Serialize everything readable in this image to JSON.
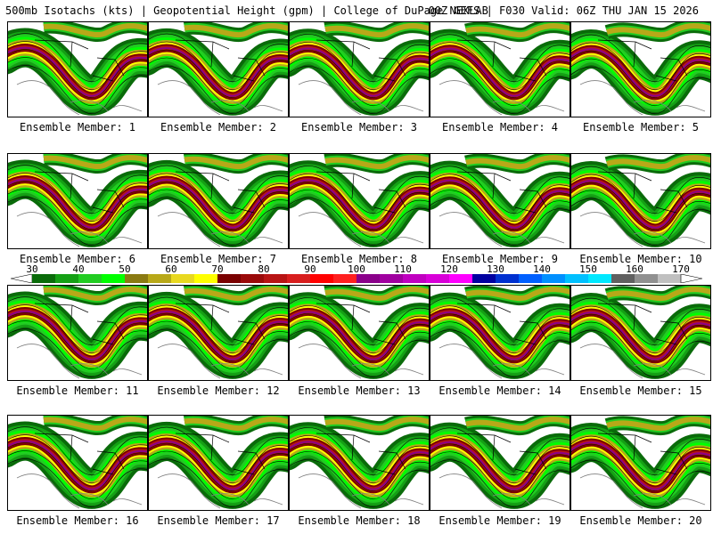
{
  "header": {
    "left_title": "500mb Isotachs (kts) | Geopotential Height (gpm) | College of DuPage NEXLAB",
    "right_title": "00Z GEFS | F030 Valid: 06Z THU JAN 15 2026"
  },
  "panels": [
    {
      "label": "Ensemble Member: 1"
    },
    {
      "label": "Ensemble Member: 2"
    },
    {
      "label": "Ensemble Member: 3"
    },
    {
      "label": "Ensemble Member: 4"
    },
    {
      "label": "Ensemble Member: 5"
    },
    {
      "label": "Ensemble Member: 6"
    },
    {
      "label": "Ensemble Member: 7"
    },
    {
      "label": "Ensemble Member: 8"
    },
    {
      "label": "Ensemble Member: 9"
    },
    {
      "label": "Ensemble Member: 10"
    },
    {
      "label": "Ensemble Member: 11"
    },
    {
      "label": "Ensemble Member: 12"
    },
    {
      "label": "Ensemble Member: 13"
    },
    {
      "label": "Ensemble Member: 14"
    },
    {
      "label": "Ensemble Member: 15"
    },
    {
      "label": "Ensemble Member: 16"
    },
    {
      "label": "Ensemble Member: 17"
    },
    {
      "label": "Ensemble Member: 18"
    },
    {
      "label": "Ensemble Member: 19"
    },
    {
      "label": "Ensemble Member: 20"
    }
  ],
  "colorbar": {
    "tick_labels": [
      "30",
      "40",
      "50",
      "60",
      "70",
      "80",
      "90",
      "100",
      "110",
      "120",
      "130",
      "140",
      "150",
      "160",
      "170"
    ],
    "colors": [
      "#0a6b0a",
      "#15a015",
      "#22cc22",
      "#00ff00",
      "#8a7a12",
      "#b8a818",
      "#e8d820",
      "#ffff00",
      "#7a0000",
      "#9a0a0a",
      "#b81414",
      "#d81e1e",
      "#ff0000",
      "#ff2020",
      "#8a008a",
      "#a000a0",
      "#c000c0",
      "#d800d8",
      "#ff00ff",
      "#0000a0",
      "#0030d0",
      "#0060ff",
      "#0090ff",
      "#00c0ff",
      "#00e8ff",
      "#606060",
      "#909090",
      "#c0c0c0"
    ],
    "colors_per_tick": 2
  },
  "map_style": {
    "land_background": "#ffffff",
    "outline_color": "#000000",
    "height_contour_color": "#000000",
    "band_colors_low_to_high": [
      "#0a6b0a",
      "#15a015",
      "#22cc22",
      "#00ff00",
      "#b8a818",
      "#ffff00",
      "#7a0000",
      "#b81414",
      "#8a008a"
    ]
  }
}
